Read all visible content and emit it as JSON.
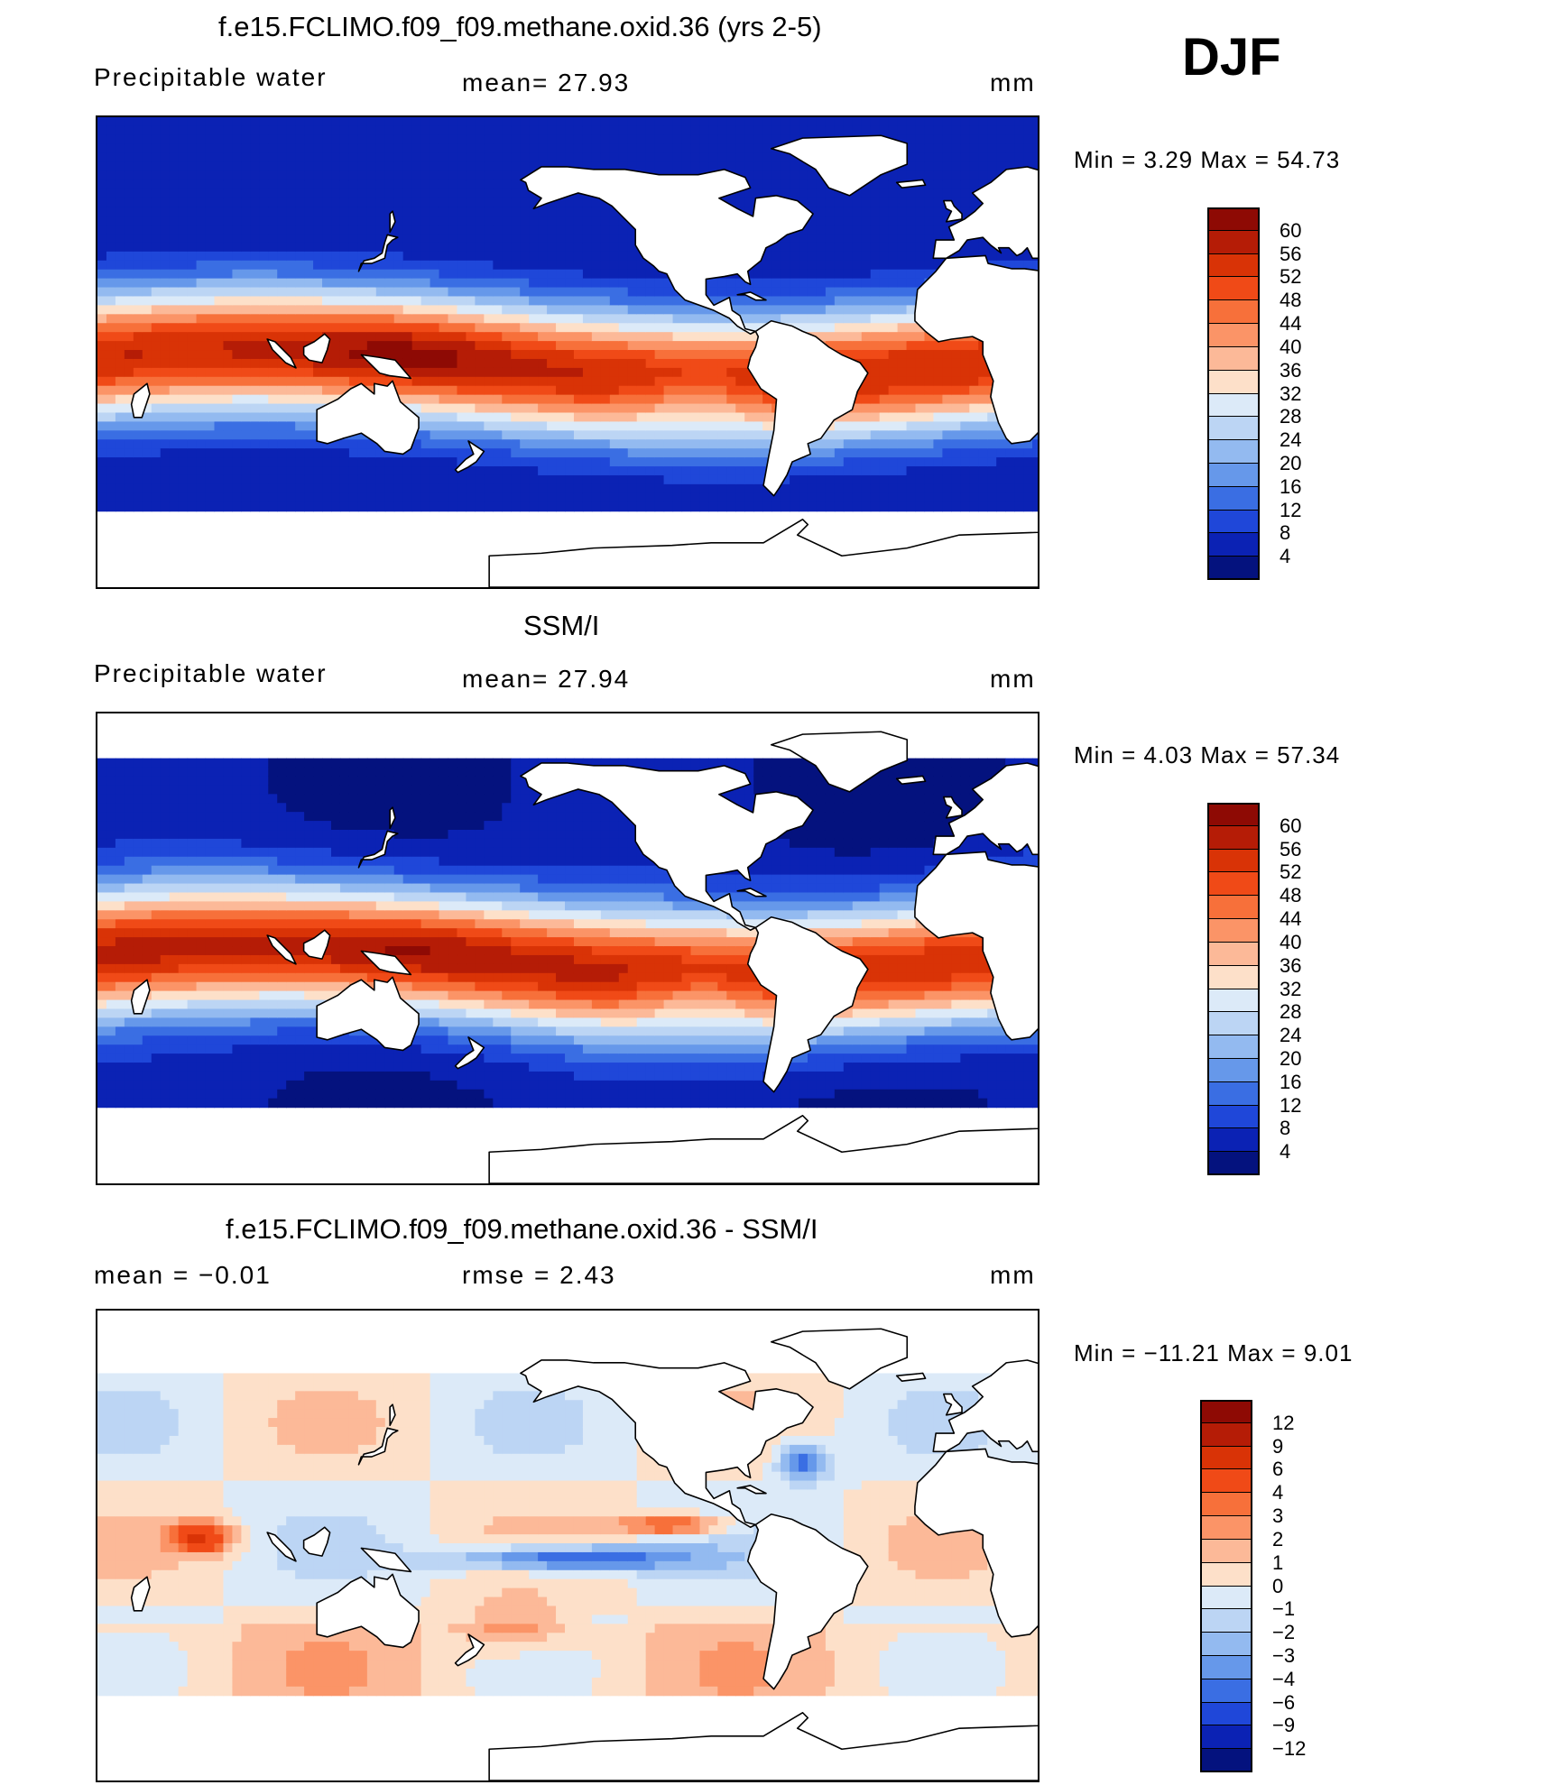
{
  "season": "DJF",
  "panels": [
    {
      "id": "model",
      "title": "f.e15.FCLIMO.f09_f09.methane.oxid.36 (yrs 2-5)",
      "left_label": "Precipitable  water",
      "mid_label": "mean=   27.93",
      "unit": "mm",
      "minmax": "Min  =      3.29  Max  =     54.73",
      "colorbar": {
        "labels": [
          "60",
          "56",
          "52",
          "48",
          "44",
          "40",
          "36",
          "32",
          "28",
          "24",
          "20",
          "16",
          "12",
          "8",
          "4"
        ],
        "colors": [
          "#8e0a04",
          "#b51c06",
          "#d93306",
          "#f04a17",
          "#f7703a",
          "#fb9467",
          "#fcb998",
          "#fde0c9",
          "#dceaf8",
          "#bcd5f4",
          "#93baf0",
          "#6698ea",
          "#3a6ee3",
          "#1f47d9",
          "#0b22b4",
          "#04127e"
        ]
      },
      "field_type": "abs"
    },
    {
      "id": "obs",
      "title": "SSM/I",
      "left_label": "Precipitable  water",
      "mid_label": "mean=   27.94",
      "unit": "mm",
      "minmax": "Min  =      4.03  Max  =     57.34",
      "colorbar": {
        "labels": [
          "60",
          "56",
          "52",
          "48",
          "44",
          "40",
          "36",
          "32",
          "28",
          "24",
          "20",
          "16",
          "12",
          "8",
          "4"
        ],
        "colors": [
          "#8e0a04",
          "#b51c06",
          "#d93306",
          "#f04a17",
          "#f7703a",
          "#fb9467",
          "#fcb998",
          "#fde0c9",
          "#dceaf8",
          "#bcd5f4",
          "#93baf0",
          "#6698ea",
          "#3a6ee3",
          "#1f47d9",
          "#0b22b4",
          "#04127e"
        ]
      },
      "field_type": "abs"
    },
    {
      "id": "diff",
      "title": "f.e15.FCLIMO.f09_f09.methane.oxid.36 - SSM/I",
      "left_label": "mean  =    −0.01",
      "mid_label": "rmse  =      2.43",
      "unit": "mm",
      "minmax": "Min  =  −11.21  Max  =       9.01",
      "colorbar": {
        "labels": [
          "12",
          "9",
          "6",
          "4",
          "3",
          "2",
          "1",
          "0",
          "−1",
          "−2",
          "−3",
          "−4",
          "−6",
          "−9",
          "−12"
        ],
        "colors": [
          "#8e0a04",
          "#b51c06",
          "#d93306",
          "#f04a17",
          "#f7703a",
          "#fb9467",
          "#fcb998",
          "#fde0c9",
          "#dceaf8",
          "#bcd5f4",
          "#93baf0",
          "#6698ea",
          "#3a6ee3",
          "#1f47d9",
          "#0b22b4",
          "#04127e"
        ]
      },
      "field_type": "diff"
    }
  ]
}
